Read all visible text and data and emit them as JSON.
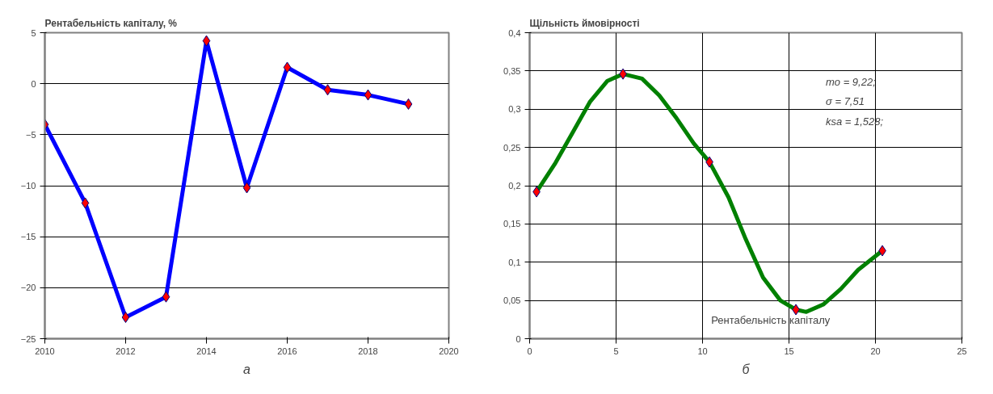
{
  "chart_data": [
    {
      "type": "line",
      "title": "Рентабельність капіталу, %",
      "x": [
        2010,
        2011,
        2012,
        2013,
        2014,
        2015,
        2016,
        2017,
        2018,
        2019
      ],
      "series": [
        {
          "color": "#0000ff",
          "values": [
            -4,
            -11.7,
            -22.9,
            -20.9,
            4.2,
            -10.2,
            1.6,
            -0.6,
            -1.1,
            -2
          ]
        }
      ],
      "xlim": [
        2010,
        2020
      ],
      "xticks": [
        2010,
        2012,
        2014,
        2016,
        2018,
        2020
      ],
      "ylim": [
        -25,
        5
      ],
      "yticks": [
        -25,
        -20,
        -15,
        -10,
        -5,
        0,
        5
      ],
      "grid": "y",
      "marker": "diamond",
      "line_style": "solid",
      "annotations": [
        "а"
      ]
    },
    {
      "type": "line",
      "title": "Щільність ймовірності",
      "xlabel": "Рентабельність капіталу",
      "x": [
        0.4,
        5.4,
        10.4,
        15.4,
        20.4
      ],
      "series": [
        {
          "type": "line",
          "marker": "none",
          "color": "#008000",
          "x": [
            0.4,
            1.5,
            2.5,
            3.5,
            4.5,
            5.4,
            6.5,
            7.5,
            8.5,
            9.5,
            10.4,
            11.5,
            12.5,
            13.5,
            14.5,
            15.4,
            16,
            17,
            18,
            19,
            20.4
          ],
          "values": [
            0.192,
            0.23,
            0.27,
            0.31,
            0.337,
            0.346,
            0.34,
            0.318,
            0.288,
            0.255,
            0.231,
            0.185,
            0.13,
            0.08,
            0.05,
            0.038,
            0.035,
            0.045,
            0.065,
            0.09,
            0.115
          ]
        },
        {
          "type": "scatter",
          "color": "#ff0000",
          "values": [
            0.192,
            0.346,
            0.231,
            0.038,
            0.115
          ]
        }
      ],
      "xlim": [
        0,
        25
      ],
      "xticks": [
        0,
        5,
        10,
        15,
        20,
        25
      ],
      "ylim": [
        0,
        0.4
      ],
      "yticks": [
        {
          "value": 0,
          "label": "0"
        },
        {
          "value": 0.05,
          "label": "0,05"
        },
        {
          "value": 0.1,
          "label": "0,1"
        },
        {
          "value": 0.15,
          "label": "0,15"
        },
        {
          "value": 0.2,
          "label": "0,2"
        },
        {
          "value": 0.25,
          "label": "0,25"
        },
        {
          "value": 0.3,
          "label": "0,3"
        },
        {
          "value": 0.35,
          "label": "0,35"
        },
        {
          "value": 0.4,
          "label": "0,4"
        }
      ],
      "grid": true,
      "marker": "diamond",
      "line_style": "solid",
      "annotations": [
        "mo = 9,22;",
        " σ = 7,51",
        "ksa = 1,528;",
        "б"
      ]
    }
  ]
}
